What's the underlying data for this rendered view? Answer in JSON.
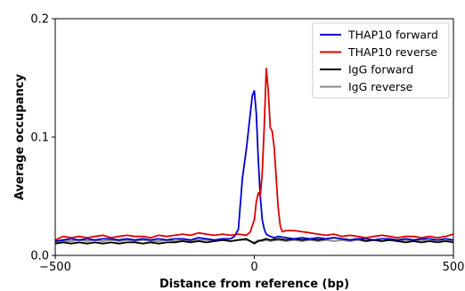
{
  "chart_data": {
    "type": "line",
    "title": "",
    "xlabel": "Distance from reference (bp)",
    "ylabel": "Average occupancy",
    "xlim": [
      -500,
      500
    ],
    "ylim": [
      0,
      0.2
    ],
    "x_ticks": [
      -500,
      0,
      500
    ],
    "x_tick_labels": [
      "−500",
      "0",
      "500"
    ],
    "y_ticks": [
      0.0,
      0.1,
      0.2
    ],
    "y_tick_labels": [
      "0.0",
      "0.1",
      "0.2"
    ],
    "grid": false,
    "legend_position": "top-right",
    "series": [
      {
        "name": "THAP10 forward",
        "color": "#0000cc",
        "x": [
          -500,
          -480,
          -460,
          -440,
          -420,
          -400,
          -380,
          -360,
          -340,
          -320,
          -300,
          -280,
          -260,
          -240,
          -220,
          -200,
          -180,
          -160,
          -140,
          -120,
          -100,
          -80,
          -60,
          -50,
          -40,
          -30,
          -20,
          -10,
          -5,
          0,
          5,
          10,
          15,
          20,
          25,
          30,
          40,
          50,
          60,
          80,
          100,
          120,
          140,
          160,
          180,
          200,
          220,
          240,
          260,
          280,
          300,
          320,
          340,
          360,
          380,
          400,
          420,
          440,
          460,
          480,
          500
        ],
        "y": [
          0.012,
          0.013,
          0.014,
          0.013,
          0.014,
          0.013,
          0.014,
          0.014,
          0.013,
          0.014,
          0.013,
          0.014,
          0.013,
          0.014,
          0.013,
          0.014,
          0.014,
          0.013,
          0.015,
          0.014,
          0.013,
          0.014,
          0.014,
          0.016,
          0.022,
          0.065,
          0.09,
          0.12,
          0.135,
          0.139,
          0.12,
          0.08,
          0.05,
          0.03,
          0.022,
          0.018,
          0.016,
          0.015,
          0.016,
          0.015,
          0.014,
          0.015,
          0.014,
          0.015,
          0.014,
          0.015,
          0.014,
          0.013,
          0.014,
          0.014,
          0.013,
          0.014,
          0.014,
          0.013,
          0.014,
          0.013,
          0.014,
          0.014,
          0.013,
          0.014,
          0.013
        ]
      },
      {
        "name": "THAP10 reverse",
        "color": "#dd0000",
        "x": [
          -500,
          -480,
          -460,
          -440,
          -420,
          -400,
          -380,
          -360,
          -340,
          -320,
          -300,
          -280,
          -260,
          -240,
          -220,
          -200,
          -180,
          -160,
          -140,
          -120,
          -100,
          -80,
          -60,
          -40,
          -20,
          -10,
          0,
          5,
          10,
          15,
          20,
          25,
          30,
          35,
          40,
          45,
          50,
          55,
          60,
          65,
          70,
          80,
          100,
          120,
          140,
          160,
          180,
          200,
          220,
          240,
          260,
          280,
          300,
          320,
          340,
          360,
          380,
          400,
          420,
          440,
          460,
          480,
          500
        ],
        "y": [
          0.013,
          0.016,
          0.015,
          0.016,
          0.015,
          0.016,
          0.017,
          0.015,
          0.016,
          0.017,
          0.016,
          0.016,
          0.015,
          0.017,
          0.016,
          0.017,
          0.018,
          0.017,
          0.019,
          0.018,
          0.017,
          0.018,
          0.017,
          0.018,
          0.017,
          0.02,
          0.03,
          0.045,
          0.053,
          0.05,
          0.07,
          0.11,
          0.158,
          0.14,
          0.108,
          0.105,
          0.09,
          0.065,
          0.04,
          0.025,
          0.02,
          0.021,
          0.021,
          0.02,
          0.019,
          0.018,
          0.017,
          0.018,
          0.016,
          0.017,
          0.016,
          0.015,
          0.016,
          0.017,
          0.016,
          0.015,
          0.016,
          0.016,
          0.015,
          0.016,
          0.015,
          0.016,
          0.018
        ]
      },
      {
        "name": "IgG forward",
        "color": "#000000",
        "x": [
          -500,
          -480,
          -460,
          -440,
          -420,
          -400,
          -380,
          -360,
          -340,
          -320,
          -300,
          -280,
          -260,
          -240,
          -220,
          -200,
          -180,
          -160,
          -140,
          -120,
          -100,
          -80,
          -60,
          -40,
          -20,
          -10,
          0,
          10,
          20,
          30,
          40,
          60,
          80,
          100,
          120,
          140,
          160,
          180,
          200,
          220,
          240,
          260,
          280,
          300,
          320,
          340,
          360,
          380,
          400,
          420,
          440,
          460,
          480,
          500
        ],
        "y": [
          0.01,
          0.011,
          0.01,
          0.011,
          0.01,
          0.011,
          0.01,
          0.011,
          0.01,
          0.011,
          0.011,
          0.01,
          0.011,
          0.01,
          0.011,
          0.011,
          0.012,
          0.011,
          0.012,
          0.011,
          0.012,
          0.013,
          0.012,
          0.013,
          0.014,
          0.012,
          0.01,
          0.012,
          0.013,
          0.014,
          0.013,
          0.014,
          0.013,
          0.014,
          0.013,
          0.014,
          0.013,
          0.014,
          0.015,
          0.014,
          0.013,
          0.014,
          0.012,
          0.013,
          0.012,
          0.013,
          0.012,
          0.011,
          0.012,
          0.011,
          0.012,
          0.011,
          0.012,
          0.011
        ]
      },
      {
        "name": "IgG reverse",
        "color": "#888888",
        "x": [
          -500,
          -480,
          -460,
          -440,
          -420,
          -400,
          -380,
          -360,
          -340,
          -320,
          -300,
          -280,
          -260,
          -240,
          -220,
          -200,
          -180,
          -160,
          -140,
          -120,
          -100,
          -80,
          -60,
          -40,
          -20,
          -10,
          0,
          10,
          20,
          30,
          40,
          60,
          80,
          100,
          120,
          140,
          160,
          180,
          200,
          220,
          240,
          260,
          280,
          300,
          320,
          340,
          360,
          380,
          400,
          420,
          440,
          460,
          480,
          500
        ],
        "y": [
          0.011,
          0.012,
          0.012,
          0.013,
          0.012,
          0.013,
          0.012,
          0.013,
          0.012,
          0.013,
          0.012,
          0.013,
          0.012,
          0.012,
          0.013,
          0.012,
          0.013,
          0.012,
          0.013,
          0.013,
          0.012,
          0.013,
          0.012,
          0.013,
          0.013,
          0.012,
          0.011,
          0.013,
          0.012,
          0.013,
          0.012,
          0.013,
          0.012,
          0.013,
          0.012,
          0.013,
          0.012,
          0.013,
          0.012,
          0.013,
          0.012,
          0.013,
          0.012,
          0.013,
          0.012,
          0.013,
          0.012,
          0.013,
          0.012,
          0.013,
          0.012,
          0.013,
          0.012,
          0.013
        ]
      }
    ]
  }
}
